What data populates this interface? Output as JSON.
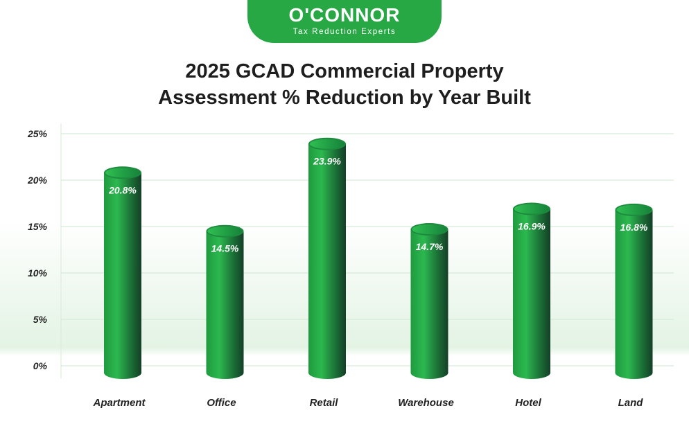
{
  "brand": {
    "name": "O'CONNOR",
    "tagline": "Tax Reduction Experts",
    "color": "#27a844"
  },
  "chart_data": {
    "type": "bar",
    "title": "2025 GCAD Commercial Property Assessment % Reduction by Year Built",
    "title_lines": [
      "2025 GCAD Commercial Property",
      "Assessment % Reduction by Year Built"
    ],
    "categories": [
      "Apartment",
      "Office",
      "Retail",
      "Warehouse",
      "Hotel",
      "Land"
    ],
    "values": [
      20.8,
      14.5,
      23.9,
      14.7,
      16.9,
      16.8
    ],
    "value_labels": [
      "20.8%",
      "14.5%",
      "23.9%",
      "14.7%",
      "16.9%",
      "16.8%"
    ],
    "yticks": [
      "0%",
      "5%",
      "10%",
      "15%",
      "20%",
      "25%"
    ],
    "ytick_values": [
      0,
      5,
      10,
      15,
      20,
      25
    ],
    "ylim": [
      0,
      25
    ],
    "xlabel": "",
    "ylabel": "",
    "grid": true,
    "bar_style": "3d-cylinder",
    "bar_color": "#22a845",
    "legend": "none"
  }
}
